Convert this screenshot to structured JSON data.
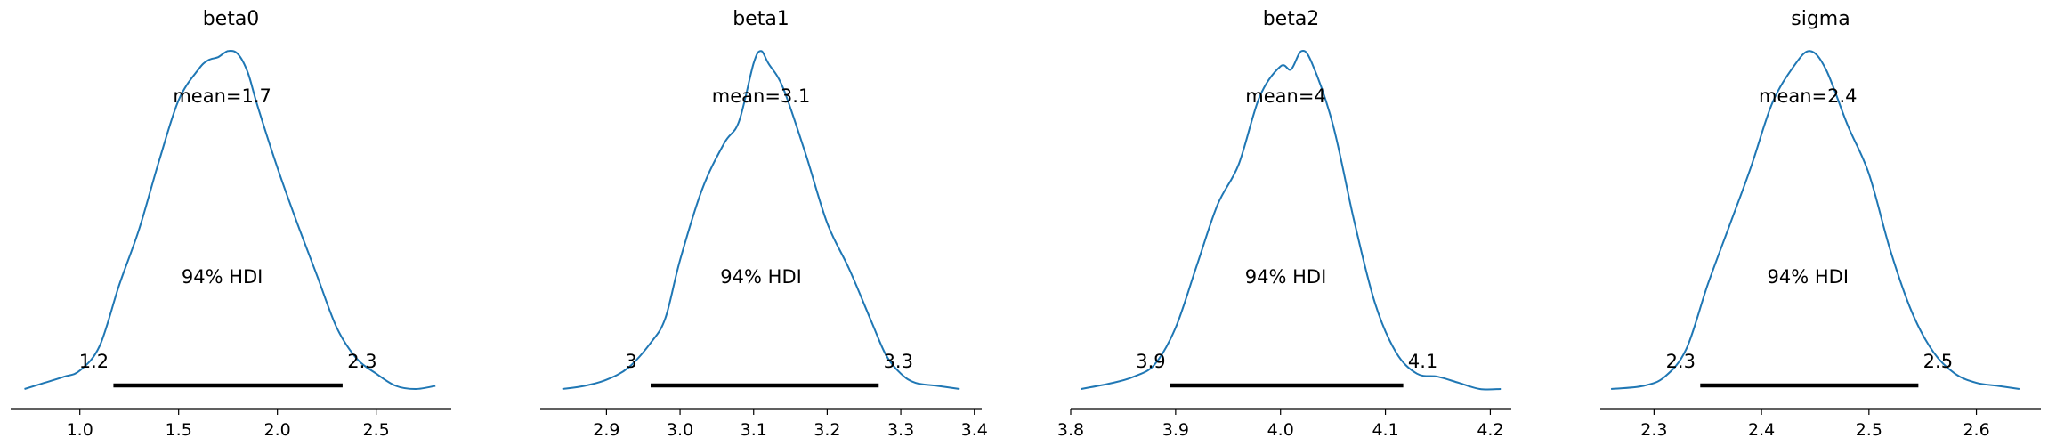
{
  "colors": {
    "density": "#1f77b4",
    "hdi_bar": "#000000",
    "axis": "#000000"
  },
  "chart_data": [
    {
      "type": "line",
      "title": "beta0",
      "mean_label": "mean=1.7",
      "hdi_label": "94% HDI",
      "hdi": [
        1.2,
        2.3
      ],
      "hdi_low_label": "1.2",
      "hdi_high_label": "2.3",
      "xlim": [
        0.65,
        2.88
      ],
      "ylim": [
        0,
        1.15
      ],
      "xticks": [
        1.0,
        1.5,
        2.0,
        2.5
      ],
      "xtick_labels": [
        "1.0",
        "1.5",
        "2.0",
        "2.5"
      ],
      "hdi_bar_range": [
        1.17,
        2.33
      ],
      "x": [
        0.72,
        0.82,
        0.92,
        1.0,
        1.1,
        1.2,
        1.3,
        1.4,
        1.5,
        1.6,
        1.65,
        1.7,
        1.75,
        1.8,
        1.85,
        1.9,
        2.0,
        2.1,
        2.2,
        2.3,
        2.4,
        2.5,
        2.6,
        2.7,
        2.8
      ],
      "y": [
        0.0,
        0.02,
        0.04,
        0.06,
        0.14,
        0.34,
        0.52,
        0.74,
        0.94,
        1.04,
        1.07,
        1.08,
        1.1,
        1.09,
        1.03,
        0.92,
        0.72,
        0.54,
        0.37,
        0.2,
        0.1,
        0.05,
        0.01,
        0.0,
        0.01
      ]
    },
    {
      "type": "line",
      "title": "beta1",
      "mean_label": "mean=3.1",
      "hdi_label": "94% HDI",
      "hdi": [
        3.0,
        3.3
      ],
      "hdi_low_label": "3",
      "hdi_high_label": "3.3",
      "xlim": [
        2.81,
        3.41
      ],
      "ylim": [
        0,
        1.15
      ],
      "xticks": [
        2.9,
        3.0,
        3.1,
        3.2,
        3.3,
        3.4
      ],
      "xtick_labels": [
        "2.9",
        "3.0",
        "3.1",
        "3.2",
        "3.3",
        "3.4"
      ],
      "hdi_bar_range": [
        2.96,
        3.27
      ],
      "x": [
        2.84,
        2.87,
        2.9,
        2.93,
        2.96,
        2.98,
        3.0,
        3.03,
        3.06,
        3.08,
        3.1,
        3.11,
        3.12,
        3.14,
        3.17,
        3.2,
        3.23,
        3.26,
        3.28,
        3.3,
        3.32,
        3.35,
        3.38
      ],
      "y": [
        0.0,
        0.01,
        0.03,
        0.07,
        0.15,
        0.23,
        0.42,
        0.65,
        0.8,
        0.87,
        1.06,
        1.1,
        1.06,
        0.98,
        0.77,
        0.54,
        0.39,
        0.22,
        0.11,
        0.05,
        0.02,
        0.01,
        0.0
      ]
    },
    {
      "type": "line",
      "title": "beta2",
      "mean_label": "mean=4",
      "hdi_label": "94% HDI",
      "hdi": [
        3.9,
        4.1
      ],
      "hdi_low_label": "3.9",
      "hdi_high_label": "4.1",
      "xlim": [
        3.8,
        4.22
      ],
      "ylim": [
        0,
        1.15
      ],
      "xticks": [
        3.8,
        3.9,
        4.0,
        4.1,
        4.2
      ],
      "xtick_labels": [
        "3.8",
        "3.9",
        "4.0",
        "4.1",
        "4.2"
      ],
      "hdi_bar_range": [
        3.895,
        4.117
      ],
      "x": [
        3.81,
        3.84,
        3.86,
        3.88,
        3.9,
        3.92,
        3.94,
        3.96,
        3.98,
        4.0,
        4.01,
        4.02,
        4.03,
        4.05,
        4.07,
        4.09,
        4.11,
        4.13,
        4.15,
        4.17,
        4.19,
        4.21
      ],
      "y": [
        0.0,
        0.02,
        0.04,
        0.08,
        0.2,
        0.4,
        0.6,
        0.73,
        0.95,
        1.05,
        1.04,
        1.1,
        1.06,
        0.86,
        0.55,
        0.28,
        0.12,
        0.05,
        0.04,
        0.02,
        0.0,
        0.0
      ]
    },
    {
      "type": "line",
      "title": "sigma",
      "mean_label": "mean=2.4",
      "hdi_label": "94% HDI",
      "hdi": [
        2.3,
        2.5
      ],
      "hdi_low_label": "2.3",
      "hdi_high_label": "2.5",
      "xlim": [
        2.25,
        2.66
      ],
      "ylim": [
        0,
        1.15
      ],
      "xticks": [
        2.3,
        2.4,
        2.5,
        2.6
      ],
      "xtick_labels": [
        "2.3",
        "2.4",
        "2.5",
        "2.6"
      ],
      "hdi_bar_range": [
        2.343,
        2.546
      ],
      "x": [
        2.26,
        2.29,
        2.31,
        2.33,
        2.35,
        2.37,
        2.39,
        2.41,
        2.43,
        2.445,
        2.46,
        2.48,
        2.5,
        2.52,
        2.54,
        2.56,
        2.58,
        2.6,
        2.62,
        2.64
      ],
      "y": [
        0.0,
        0.01,
        0.04,
        0.13,
        0.34,
        0.53,
        0.72,
        0.93,
        1.05,
        1.1,
        1.04,
        0.86,
        0.7,
        0.45,
        0.25,
        0.12,
        0.05,
        0.02,
        0.01,
        0.0
      ]
    }
  ]
}
